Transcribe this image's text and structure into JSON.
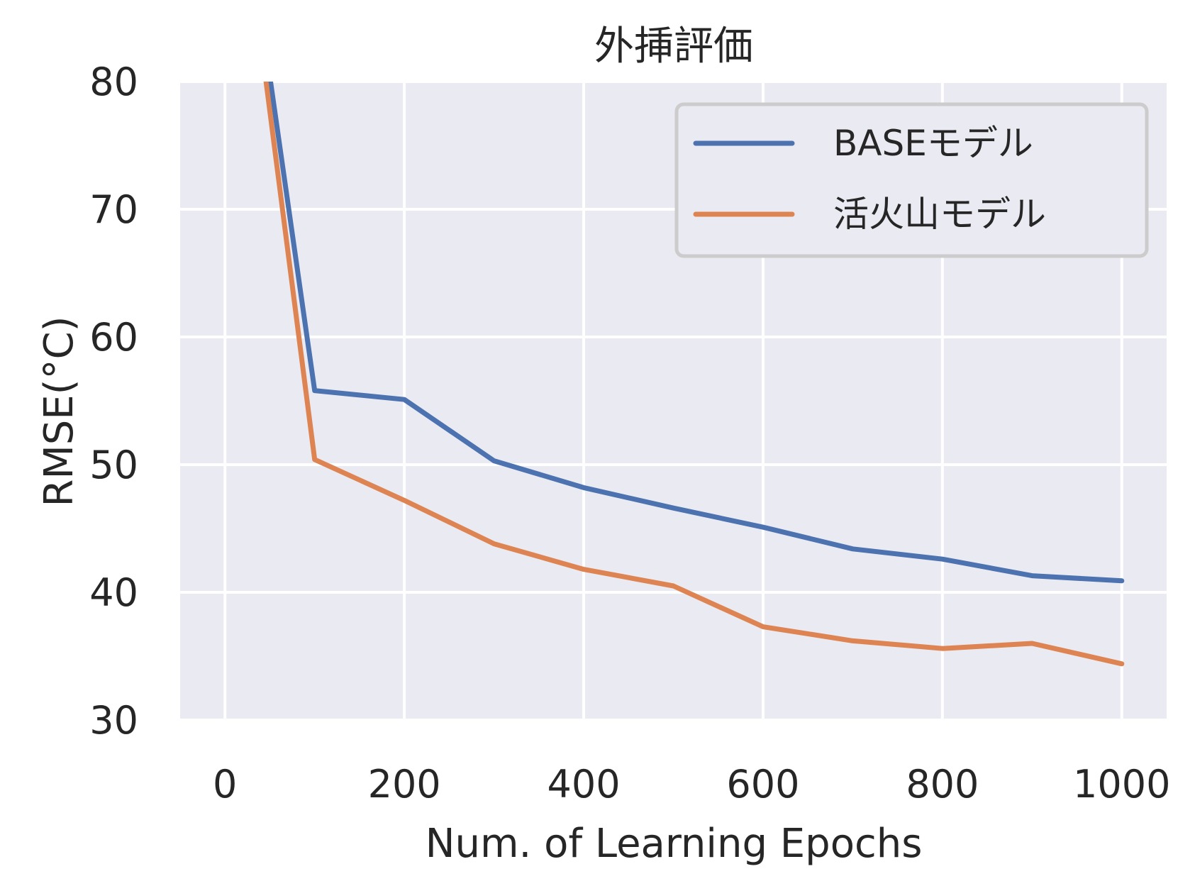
{
  "chart_data": {
    "type": "line",
    "title": "外挿評価",
    "xlabel": "Num. of Learning Epochs",
    "ylabel": "RMSE(°C)",
    "xlim": [
      -50,
      1050
    ],
    "ylim": [
      30,
      80
    ],
    "xticks": [
      0,
      200,
      400,
      600,
      800,
      1000
    ],
    "yticks": [
      30,
      40,
      50,
      60,
      70,
      80
    ],
    "grid": true,
    "legend_position": "top-right",
    "background": "#eaeaf2",
    "grid_color": "#ffffff",
    "series": [
      {
        "name": "BASEモデル",
        "color": "#4c72b0",
        "x": [
          0,
          100,
          200,
          300,
          400,
          500,
          600,
          700,
          800,
          900,
          1000
        ],
        "y": [
          105,
          55.8,
          55.1,
          50.3,
          48.2,
          46.6,
          45.1,
          43.4,
          42.6,
          41.3,
          40.9
        ]
      },
      {
        "name": "活火山モデル",
        "color": "#dd8452",
        "x": [
          0,
          100,
          200,
          300,
          400,
          500,
          600,
          700,
          800,
          900,
          1000
        ],
        "y": [
          105,
          50.4,
          47.2,
          43.8,
          41.8,
          40.5,
          37.3,
          36.2,
          35.6,
          36.0,
          34.4
        ]
      }
    ]
  }
}
